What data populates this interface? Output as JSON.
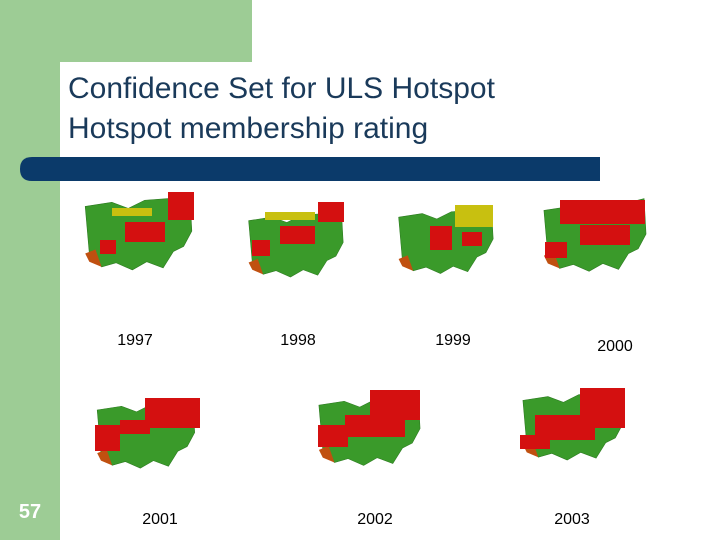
{
  "slide_number": "57",
  "title": {
    "line1": "Confidence Set for ULS Hotspot",
    "line2": "Hotspot membership rating"
  },
  "maps": [
    {
      "label": "1997"
    },
    {
      "label": "1998"
    },
    {
      "label": "1999"
    },
    {
      "label": "2000"
    },
    {
      "label": "2001"
    },
    {
      "label": "2002"
    },
    {
      "label": "2003"
    }
  ]
}
